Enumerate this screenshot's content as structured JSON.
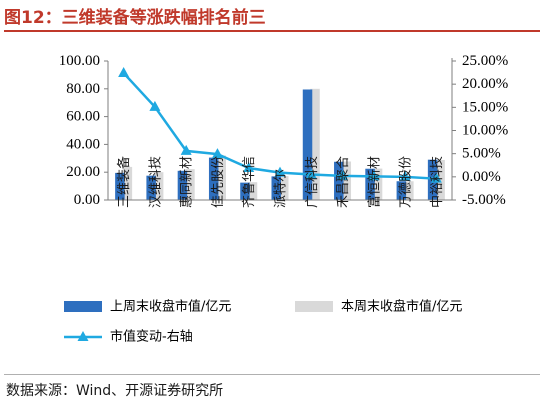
{
  "header": {
    "title": "图12：三维装备等涨跌幅排名前三"
  },
  "footer": {
    "source": "数据来源：Wind、开源证券研究所"
  },
  "colors": {
    "title": "#c0392b",
    "last_week": "#2e6fbf",
    "this_week": "#d9d9d9",
    "change": "#1fa9e1"
  },
  "chart_data": {
    "type": "bar",
    "categories": [
      "三维装备",
      "汉维科技",
      "惠同新材",
      "佳先股份",
      "齐鲁华信",
      "派特尔",
      "广信科技",
      "禾昌聚合",
      "富恒新材",
      "万德股份",
      "中裕科技"
    ],
    "series": [
      {
        "name": "上周末收盘市值/亿元",
        "type": "bar",
        "axis": "left",
        "values": [
          19.5,
          17.5,
          21.0,
          30.5,
          12.5,
          17.0,
          79.5,
          27.5,
          22.5,
          13.5,
          29.0
        ]
      },
      {
        "name": "本周末收盘市值/亿元",
        "type": "bar",
        "axis": "left",
        "values": [
          23.8,
          20.0,
          22.2,
          32.0,
          12.8,
          17.2,
          80.0,
          27.7,
          22.6,
          13.5,
          28.8
        ]
      },
      {
        "name": "市值变动-右轴",
        "type": "line",
        "axis": "right",
        "values": [
          22.4,
          15.1,
          5.6,
          4.9,
          1.9,
          0.9,
          0.5,
          0.2,
          0.1,
          0.0,
          -0.4
        ]
      }
    ],
    "y_left": {
      "ylim": [
        0,
        100
      ],
      "ticks": [
        "0.00",
        "20.00",
        "40.00",
        "60.00",
        "80.00",
        "100.00"
      ]
    },
    "y_right": {
      "ylim": [
        -5,
        25
      ],
      "ticks": [
        "-5.00%",
        "0.00%",
        "5.00%",
        "10.00%",
        "15.00%",
        "20.00%",
        "25.00%"
      ]
    },
    "grid": false,
    "legend_placement": "bottom"
  }
}
